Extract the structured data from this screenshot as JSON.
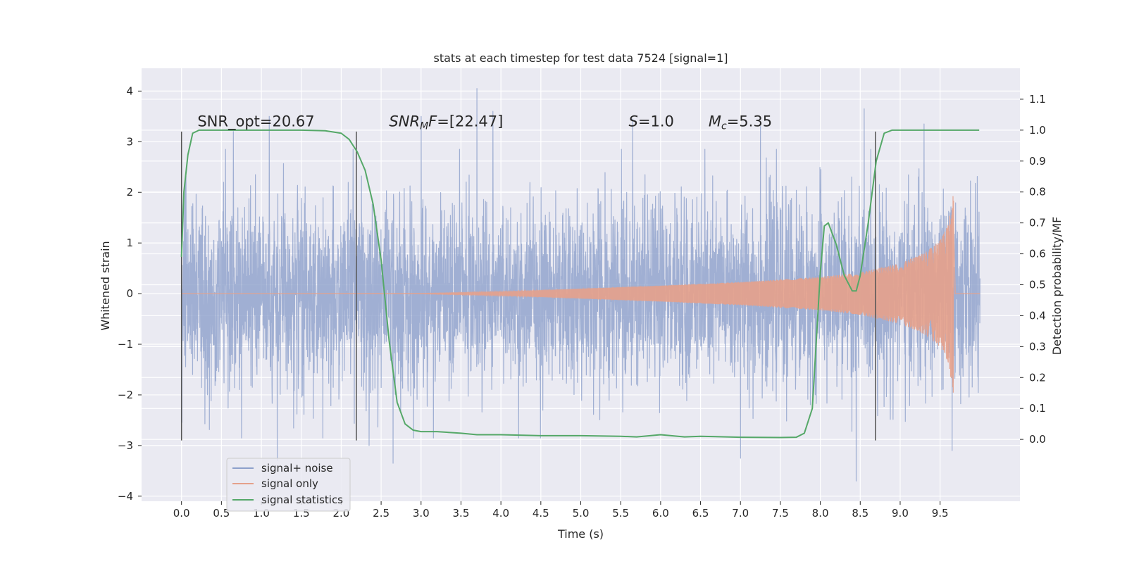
{
  "chart_data": {
    "type": "line",
    "title": "stats at each timestep for test data 7524 [signal=1]",
    "xlabel": "Time (s)",
    "ylabel": "Whitened strain",
    "ylabel_right": "Detection probability/MF",
    "xlim": [
      -0.5,
      10.5
    ],
    "ylim": [
      -4.1,
      4.45
    ],
    "ylim_right": [
      -0.2,
      1.2
    ],
    "x_ticks": [
      0.0,
      0.5,
      1.0,
      1.5,
      2.0,
      2.5,
      3.0,
      3.5,
      4.0,
      4.5,
      5.0,
      5.5,
      6.0,
      6.5,
      7.0,
      7.5,
      8.0,
      8.5,
      9.0,
      9.5
    ],
    "x_tick_labels": [
      "0.0",
      "0.5",
      "1.0",
      "1.5",
      "2.0",
      "2.5",
      "3.0",
      "3.5",
      "4.0",
      "4.5",
      "5.0",
      "5.5",
      "6.0",
      "6.5",
      "7.0",
      "7.5",
      "8.0",
      "8.5",
      "9.0",
      "9.5"
    ],
    "y_ticks": [
      4,
      3,
      2,
      1,
      0,
      -1,
      -2,
      -3,
      -4
    ],
    "y_tick_labels": [
      "4",
      "3",
      "2",
      "1",
      "0",
      "−1",
      "−2",
      "−3",
      "−4"
    ],
    "y_ticks_right": [
      1.1,
      1.0,
      0.9,
      0.8,
      0.7,
      0.6,
      0.5,
      0.4,
      0.3,
      0.2,
      0.1,
      0.0
    ],
    "y_tick_labels_right": [
      "1.1",
      "1.0",
      "0.9",
      "0.8",
      "0.7",
      "0.6",
      "0.5",
      "0.4",
      "0.3",
      "0.2",
      "0.1",
      "0.0"
    ],
    "grid": true,
    "legend_position": "bottom-left",
    "series": [
      {
        "name": "signal+ noise",
        "color": "#8da0cb",
        "axis": "left",
        "duration": 10.0,
        "sigma": 0.9,
        "samples": 4096,
        "peaks": [
          [
            0.05,
            2.3
          ],
          [
            0.65,
            3.2
          ],
          [
            1.1,
            3.5
          ],
          [
            1.2,
            -3.3
          ],
          [
            2.35,
            -3.0
          ],
          [
            2.65,
            -3.35
          ],
          [
            3.0,
            3.5
          ],
          [
            3.7,
            4.05
          ],
          [
            3.9,
            3.6
          ],
          [
            5.65,
            3.45
          ],
          [
            7.0,
            -3.25
          ],
          [
            7.25,
            3.3
          ],
          [
            8.45,
            -3.7
          ],
          [
            8.55,
            3.65
          ],
          [
            9.3,
            3.35
          ],
          [
            9.65,
            -3.1
          ]
        ]
      },
      {
        "name": "signal only",
        "color": "#e5a18b",
        "axis": "left",
        "x_start": 0.0,
        "x_end": 9.67,
        "t_coalescence": 9.7,
        "envelope_at": [
          [
            0.0,
            0.0
          ],
          [
            3.0,
            0.005
          ],
          [
            4.0,
            0.04
          ],
          [
            5.0,
            0.1
          ],
          [
            6.0,
            0.16
          ],
          [
            7.0,
            0.23
          ],
          [
            8.0,
            0.33
          ],
          [
            8.5,
            0.42
          ],
          [
            9.0,
            0.6
          ],
          [
            9.3,
            0.8
          ],
          [
            9.5,
            1.05
          ],
          [
            9.6,
            1.35
          ],
          [
            9.67,
            2.0
          ]
        ]
      },
      {
        "name": "signal statistics",
        "color": "#55a868",
        "axis": "right",
        "x": [
          0.0,
          0.03,
          0.08,
          0.14,
          0.22,
          0.4,
          1.0,
          1.5,
          1.8,
          2.0,
          2.1,
          2.2,
          2.3,
          2.4,
          2.5,
          2.6,
          2.7,
          2.8,
          2.9,
          3.0,
          3.2,
          3.5,
          3.7,
          4.0,
          4.5,
          5.0,
          5.5,
          5.7,
          6.0,
          6.3,
          6.5,
          7.0,
          7.5,
          7.7,
          7.8,
          7.9,
          8.0,
          8.05,
          8.1,
          8.2,
          8.3,
          8.4,
          8.45,
          8.5,
          8.6,
          8.7,
          8.8,
          8.9,
          9.0,
          9.5,
          9.99
        ],
        "values": [
          0.59,
          0.8,
          0.92,
          0.99,
          1.0,
          1.0,
          1.0,
          1.0,
          0.998,
          0.99,
          0.97,
          0.93,
          0.87,
          0.76,
          0.58,
          0.32,
          0.12,
          0.05,
          0.03,
          0.025,
          0.025,
          0.02,
          0.015,
          0.015,
          0.012,
          0.012,
          0.01,
          0.008,
          0.015,
          0.008,
          0.01,
          0.007,
          0.006,
          0.007,
          0.02,
          0.1,
          0.54,
          0.69,
          0.7,
          0.63,
          0.53,
          0.48,
          0.48,
          0.53,
          0.7,
          0.9,
          0.99,
          1.0,
          1.0,
          1.0,
          1.0
        ]
      }
    ],
    "vlines": [
      0.0,
      2.19,
      8.69
    ],
    "vline_range": [
      -2.9,
      3.2
    ],
    "annotations": [
      {
        "id": "snr-opt",
        "x": 0.2,
        "y": 3.3,
        "parts": [
          {
            "text": "SNR_opt=20.67",
            "style": "normal"
          }
        ]
      },
      {
        "id": "snr-mf",
        "x": 2.6,
        "y": 3.3,
        "parts": [
          {
            "text": "SNR",
            "style": "italic"
          },
          {
            "text": "M",
            "style": "italic-sub"
          },
          {
            "text": "F",
            "style": "italic"
          },
          {
            "text": "=[22.47]",
            "style": "normal"
          }
        ]
      },
      {
        "id": "s-value",
        "x": 5.6,
        "y": 3.3,
        "parts": [
          {
            "text": "S",
            "style": "italic"
          },
          {
            "text": "=1.0",
            "style": "normal"
          }
        ]
      },
      {
        "id": "chirp-mass",
        "x": 6.6,
        "y": 3.3,
        "parts": [
          {
            "text": "M",
            "style": "italic"
          },
          {
            "text": "c",
            "style": "italic-sub"
          },
          {
            "text": "=5.35",
            "style": "normal"
          }
        ]
      }
    ]
  }
}
